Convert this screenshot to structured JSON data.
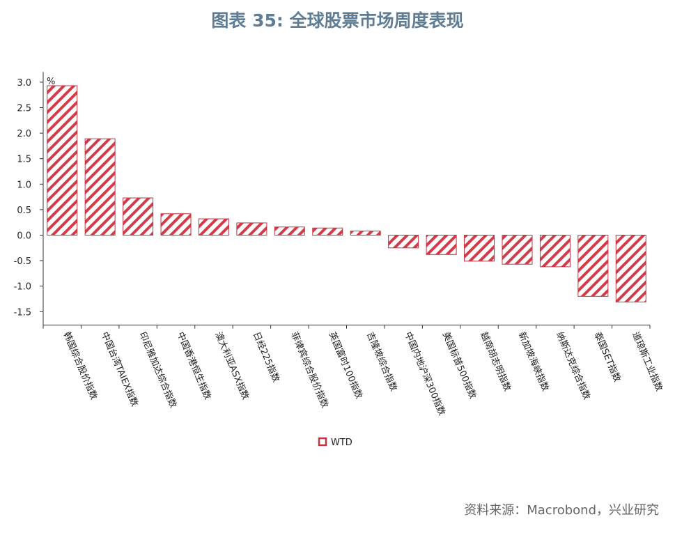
{
  "title": "图表 35: 全球股票市场周度表现",
  "source": "资料来源：Macrobond，兴业研究",
  "colors": {
    "bar": "#c8323e",
    "title": "#5e7d95"
  },
  "chart_data": {
    "type": "bar",
    "categories": [
      "韩国综合股价指数",
      "中国台湾TAIEX指数",
      "印尼雅加达综合指数",
      "中国香港恒生指数",
      "澳大利亚ASX指数",
      "日经225指数",
      "菲律宾综合股价指数",
      "英国富时100指数",
      "吉隆坡综合指数",
      "中国内地沪深300指数",
      "美国标普500指数",
      "越南胡志明指数",
      "新加坡海峡指数",
      "纳斯达克综合指数",
      "泰国SET指数",
      "道琼斯工业指数"
    ],
    "series": [
      {
        "name": "WTD",
        "values": [
          2.93,
          1.89,
          0.73,
          0.42,
          0.32,
          0.24,
          0.16,
          0.14,
          0.08,
          -0.25,
          -0.38,
          -0.51,
          -0.57,
          -0.62,
          -1.2,
          -1.31
        ]
      }
    ],
    "unit_label": "%",
    "ylim": [
      -1.6,
      3.2
    ],
    "yticks": [
      3.0,
      2.5,
      2.0,
      1.5,
      1.0,
      0.5,
      0.0,
      -0.5,
      -1.0,
      -1.5
    ],
    "ytick_labels": [
      "3.0",
      "2.5",
      "2.0",
      "1.5",
      "1.0",
      "0.5",
      "0.0",
      "-0.5",
      "-1.0",
      "-1.5"
    ],
    "grid": false,
    "legend": "bottom-center"
  }
}
